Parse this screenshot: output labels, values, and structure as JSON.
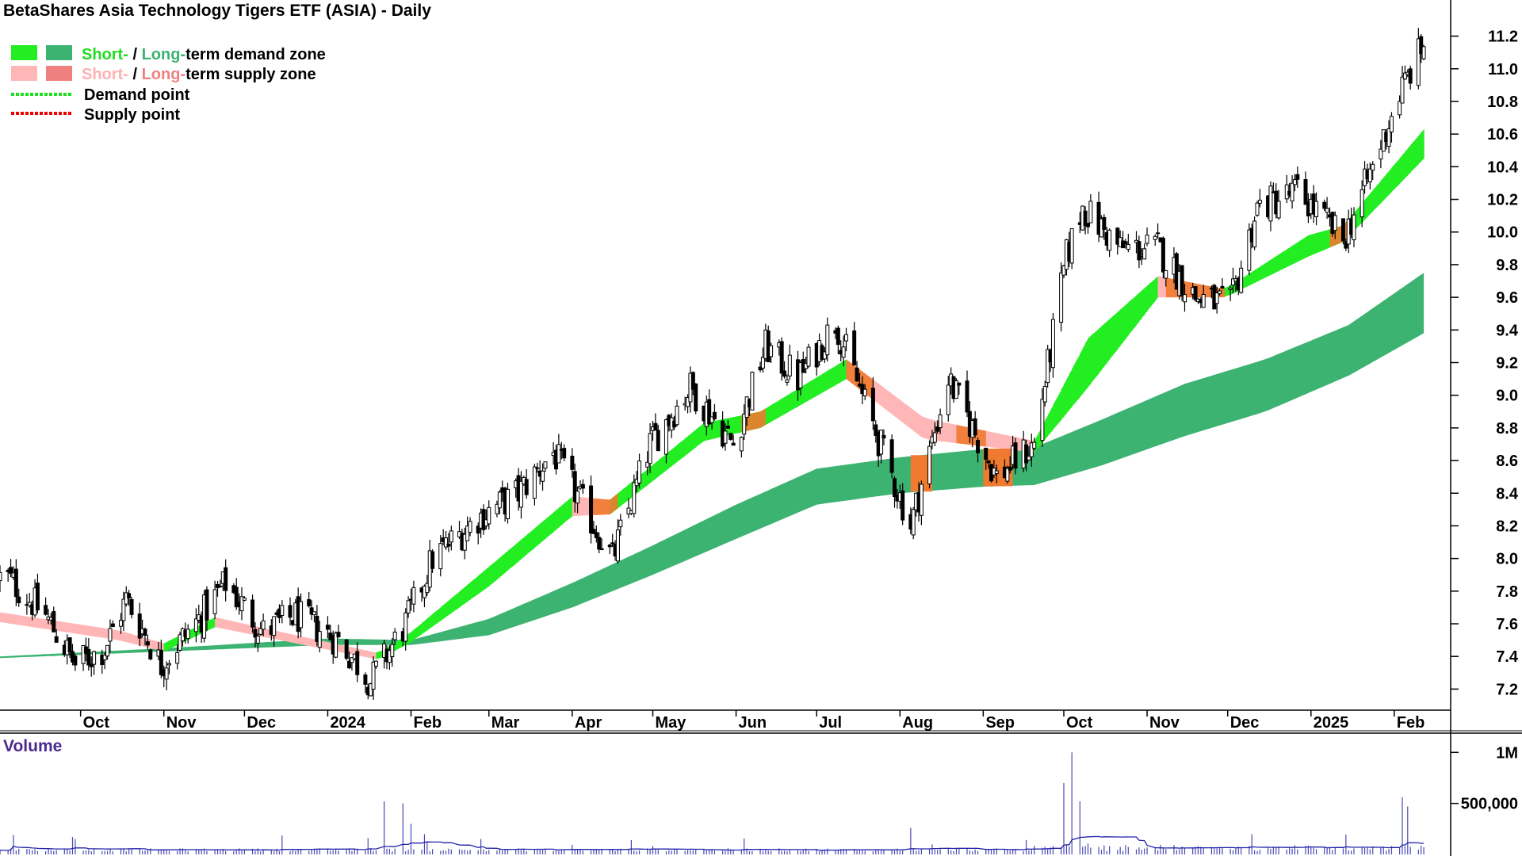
{
  "chart_data": {
    "type": "candlestick",
    "title": "BetaShares Asia Technology Tigers ETF (ASIA) - Daily",
    "legend": [
      {
        "swatches": [
          "#22ee22",
          "#3cb371"
        ],
        "label_parts": [
          "Short-",
          " / ",
          "Long-",
          "term demand zone"
        ],
        "label_colors": [
          "#22dd22",
          "#000000",
          "#3cb371",
          "#000000"
        ]
      },
      {
        "swatches": [
          "#ffb6b6",
          "#f08080"
        ],
        "label_parts": [
          "Short-",
          " / ",
          "Long-",
          "term supply zone"
        ],
        "label_colors": [
          "#ffb0b0",
          "#000000",
          "#f08080",
          "#000000"
        ]
      },
      {
        "line": "#22dd22",
        "label": "Demand point"
      },
      {
        "line": "#ee0000",
        "label": "Supply point"
      }
    ],
    "colors": {
      "short_demand": "#22ee22",
      "long_demand": "#3cb371",
      "short_supply": "#ffb6b6",
      "long_supply": "#f08080",
      "transition": "#f07a30",
      "volume": "#4a4ab4"
    },
    "price_axis": {
      "ylim": [
        7.1,
        11.3
      ],
      "ticks": [
        7.2,
        7.4,
        7.6,
        7.8,
        8.0,
        8.2,
        8.4,
        8.6,
        8.8,
        9.0,
        9.2,
        9.4,
        9.6,
        9.8,
        10.0,
        10.2,
        10.4,
        10.6,
        10.8,
        11.0,
        11.2
      ],
      "tick_labels": [
        "7.2",
        "7.4",
        "7.6",
        "7.8",
        "8.0",
        "8.2",
        "8.4",
        "8.6",
        "8.8",
        "9.0",
        "9.2",
        "9.4",
        "9.6",
        "9.8",
        "10.0",
        "10.2",
        "10.4",
        "10.6",
        "10.8",
        "11.0",
        "11.2"
      ]
    },
    "date_axis": {
      "labels": [
        "Oct",
        "Nov",
        "Dec",
        "2024",
        "Feb",
        "Mar",
        "Apr",
        "May",
        "Jun",
        "Jul",
        "Aug",
        "Sep",
        "Oct",
        "Nov",
        "Dec",
        "2025",
        "Feb"
      ],
      "label_dates": [
        "2023-10-01",
        "2023-11-01",
        "2023-12-01",
        "2024-01-01",
        "2024-02-01",
        "2024-03-01",
        "2024-04-01",
        "2024-05-01",
        "2024-06-01",
        "2024-07-01",
        "2024-08-01",
        "2024-09-01",
        "2024-10-01",
        "2024-11-01",
        "2024-12-01",
        "2025-01-01",
        "2025-02-01"
      ]
    },
    "price_series": [
      {
        "date": "2023-09-04",
        "close": 7.88
      },
      {
        "date": "2023-09-18",
        "close": 7.65
      },
      {
        "date": "2023-09-29",
        "close": 7.35
      },
      {
        "date": "2023-10-10",
        "close": 7.45
      },
      {
        "date": "2023-10-18",
        "close": 7.75
      },
      {
        "date": "2023-10-31",
        "close": 7.35
      },
      {
        "date": "2023-11-15",
        "close": 7.65
      },
      {
        "date": "2023-11-24",
        "close": 7.85
      },
      {
        "date": "2023-12-08",
        "close": 7.55
      },
      {
        "date": "2023-12-20",
        "close": 7.65
      },
      {
        "date": "2024-01-05",
        "close": 7.5
      },
      {
        "date": "2024-01-17",
        "close": 7.25
      },
      {
        "date": "2024-01-30",
        "close": 7.6
      },
      {
        "date": "2024-02-09",
        "close": 8.0
      },
      {
        "date": "2024-02-26",
        "close": 8.25
      },
      {
        "date": "2024-03-12",
        "close": 8.4
      },
      {
        "date": "2024-03-25",
        "close": 8.65
      },
      {
        "date": "2024-04-16",
        "close": 8.0
      },
      {
        "date": "2024-04-30",
        "close": 8.7
      },
      {
        "date": "2024-05-15",
        "close": 9.05
      },
      {
        "date": "2024-05-31",
        "close": 8.7
      },
      {
        "date": "2024-06-12",
        "close": 9.3
      },
      {
        "date": "2024-06-24",
        "close": 9.1
      },
      {
        "date": "2024-07-08",
        "close": 9.45
      },
      {
        "date": "2024-07-19",
        "close": 8.95
      },
      {
        "date": "2024-08-05",
        "close": 8.2
      },
      {
        "date": "2024-08-19",
        "close": 9.1
      },
      {
        "date": "2024-09-06",
        "close": 8.5
      },
      {
        "date": "2024-09-20",
        "close": 8.7
      },
      {
        "date": "2024-10-02",
        "close": 9.85
      },
      {
        "date": "2024-10-08",
        "close": 10.15
      },
      {
        "date": "2024-10-22",
        "close": 9.9
      },
      {
        "date": "2024-11-05",
        "close": 9.9
      },
      {
        "date": "2024-11-19",
        "close": 9.6
      },
      {
        "date": "2024-12-02",
        "close": 9.55
      },
      {
        "date": "2024-12-12",
        "close": 10.15
      },
      {
        "date": "2024-12-27",
        "close": 10.25
      },
      {
        "date": "2025-01-13",
        "close": 9.95
      },
      {
        "date": "2025-01-24",
        "close": 10.4
      },
      {
        "date": "2025-02-03",
        "close": 10.85
      },
      {
        "date": "2025-02-12",
        "close": 11.15
      }
    ],
    "short_term_zone": [
      {
        "date": "2023-09-01",
        "upper": 7.67,
        "lower": 7.61
      },
      {
        "date": "2023-10-15",
        "upper": 7.56,
        "lower": 7.5
      },
      {
        "date": "2023-11-01",
        "upper": 7.48,
        "lower": 7.43
      },
      {
        "date": "2023-11-20",
        "upper": 7.64,
        "lower": 7.58
      },
      {
        "date": "2023-12-20",
        "upper": 7.53,
        "lower": 7.48
      },
      {
        "date": "2024-01-20",
        "upper": 7.42,
        "lower": 7.38
      },
      {
        "date": "2024-02-01",
        "upper": 7.55,
        "lower": 7.49
      },
      {
        "date": "2024-03-01",
        "upper": 7.95,
        "lower": 7.83
      },
      {
        "date": "2024-04-01",
        "upper": 8.38,
        "lower": 8.26
      },
      {
        "date": "2024-04-15",
        "upper": 8.36,
        "lower": 8.27
      },
      {
        "date": "2024-05-20",
        "upper": 8.83,
        "lower": 8.72
      },
      {
        "date": "2024-06-10",
        "upper": 8.9,
        "lower": 8.8
      },
      {
        "date": "2024-07-12",
        "upper": 9.22,
        "lower": 9.1
      },
      {
        "date": "2024-08-10",
        "upper": 8.86,
        "lower": 8.73
      },
      {
        "date": "2024-09-20",
        "upper": 8.72,
        "lower": 8.65
      },
      {
        "date": "2024-10-10",
        "upper": 9.35,
        "lower": 9.05
      },
      {
        "date": "2024-11-05",
        "upper": 9.73,
        "lower": 9.6
      },
      {
        "date": "2024-11-30",
        "upper": 9.65,
        "lower": 9.6
      },
      {
        "date": "2024-12-31",
        "upper": 9.98,
        "lower": 9.85
      },
      {
        "date": "2025-01-13",
        "upper": 10.04,
        "lower": 9.94
      },
      {
        "date": "2025-02-12",
        "upper": 10.63,
        "lower": 10.45
      }
    ],
    "long_term_zone": [
      {
        "date": "2023-09-01",
        "upper": 7.4,
        "lower": 7.39
      },
      {
        "date": "2023-11-01",
        "upper": 7.45,
        "lower": 7.43
      },
      {
        "date": "2024-01-01",
        "upper": 7.51,
        "lower": 7.47
      },
      {
        "date": "2024-02-01",
        "upper": 7.5,
        "lower": 7.47
      },
      {
        "date": "2024-03-01",
        "upper": 7.63,
        "lower": 7.53
      },
      {
        "date": "2024-04-01",
        "upper": 7.85,
        "lower": 7.7
      },
      {
        "date": "2024-05-01",
        "upper": 8.08,
        "lower": 7.9
      },
      {
        "date": "2024-06-01",
        "upper": 8.33,
        "lower": 8.12
      },
      {
        "date": "2024-07-01",
        "upper": 8.55,
        "lower": 8.33
      },
      {
        "date": "2024-08-01",
        "upper": 8.62,
        "lower": 8.4
      },
      {
        "date": "2024-09-01",
        "upper": 8.67,
        "lower": 8.44
      },
      {
        "date": "2024-09-20",
        "upper": 8.68,
        "lower": 8.45
      },
      {
        "date": "2024-10-15",
        "upper": 8.85,
        "lower": 8.57
      },
      {
        "date": "2024-11-15",
        "upper": 9.07,
        "lower": 8.75
      },
      {
        "date": "2024-12-15",
        "upper": 9.22,
        "lower": 8.9
      },
      {
        "date": "2025-01-15",
        "upper": 9.43,
        "lower": 9.12
      },
      {
        "date": "2025-02-12",
        "upper": 9.75,
        "lower": 9.38
      }
    ],
    "volume_axis": {
      "ticks": [
        500000,
        1000000
      ],
      "tick_labels": [
        "500,000",
        "1M"
      ],
      "ylim": [
        0,
        1150000
      ],
      "title": "Volume"
    },
    "volume_peaks": [
      {
        "date": "2024-01-22",
        "value": 520000
      },
      {
        "date": "2024-01-29",
        "value": 500000
      },
      {
        "date": "2024-02-01",
        "value": 300000
      },
      {
        "date": "2024-08-05",
        "value": 260000
      },
      {
        "date": "2024-10-01",
        "value": 700000
      },
      {
        "date": "2024-10-04",
        "value": 1000000
      },
      {
        "date": "2024-10-07",
        "value": 520000
      },
      {
        "date": "2025-02-04",
        "value": 560000
      },
      {
        "date": "2025-02-06",
        "value": 470000
      }
    ]
  }
}
